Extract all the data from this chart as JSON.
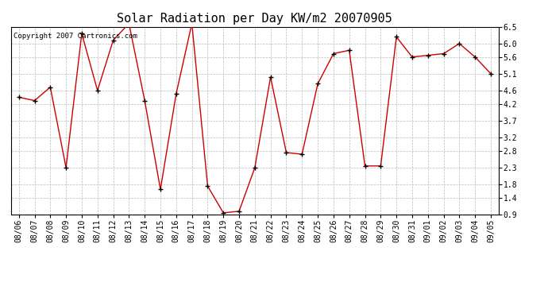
{
  "title": "Solar Radiation per Day KW/m2 20070905",
  "copyright_text": "Copyright 2007 Cartronics.com",
  "x_labels": [
    "08/06",
    "08/07",
    "08/08",
    "08/09",
    "08/10",
    "08/11",
    "08/12",
    "08/13",
    "08/14",
    "08/15",
    "08/16",
    "08/17",
    "08/18",
    "08/19",
    "08/20",
    "08/21",
    "08/22",
    "08/23",
    "08/24",
    "08/25",
    "08/26",
    "08/27",
    "08/28",
    "08/29",
    "08/30",
    "08/31",
    "09/01",
    "09/02",
    "09/03",
    "09/04",
    "09/05"
  ],
  "y_values": [
    4.4,
    4.3,
    4.7,
    2.3,
    6.3,
    4.6,
    6.1,
    6.6,
    4.3,
    1.65,
    4.5,
    6.6,
    1.75,
    0.95,
    1.0,
    2.3,
    5.0,
    2.75,
    2.7,
    4.8,
    5.7,
    5.8,
    2.35,
    2.35,
    6.2,
    5.6,
    5.65,
    5.7,
    6.0,
    5.6,
    5.1
  ],
  "line_color": "#cc0000",
  "marker_color": "#000000",
  "background_color": "#ffffff",
  "grid_color": "#bbbbbb",
  "ylim": [
    0.9,
    6.5
  ],
  "yticks": [
    0.9,
    1.4,
    1.8,
    2.3,
    2.8,
    3.2,
    3.7,
    4.2,
    4.6,
    5.1,
    5.6,
    6.0,
    6.5
  ],
  "title_fontsize": 11,
  "tick_fontsize": 7,
  "copyright_fontsize": 6.5
}
